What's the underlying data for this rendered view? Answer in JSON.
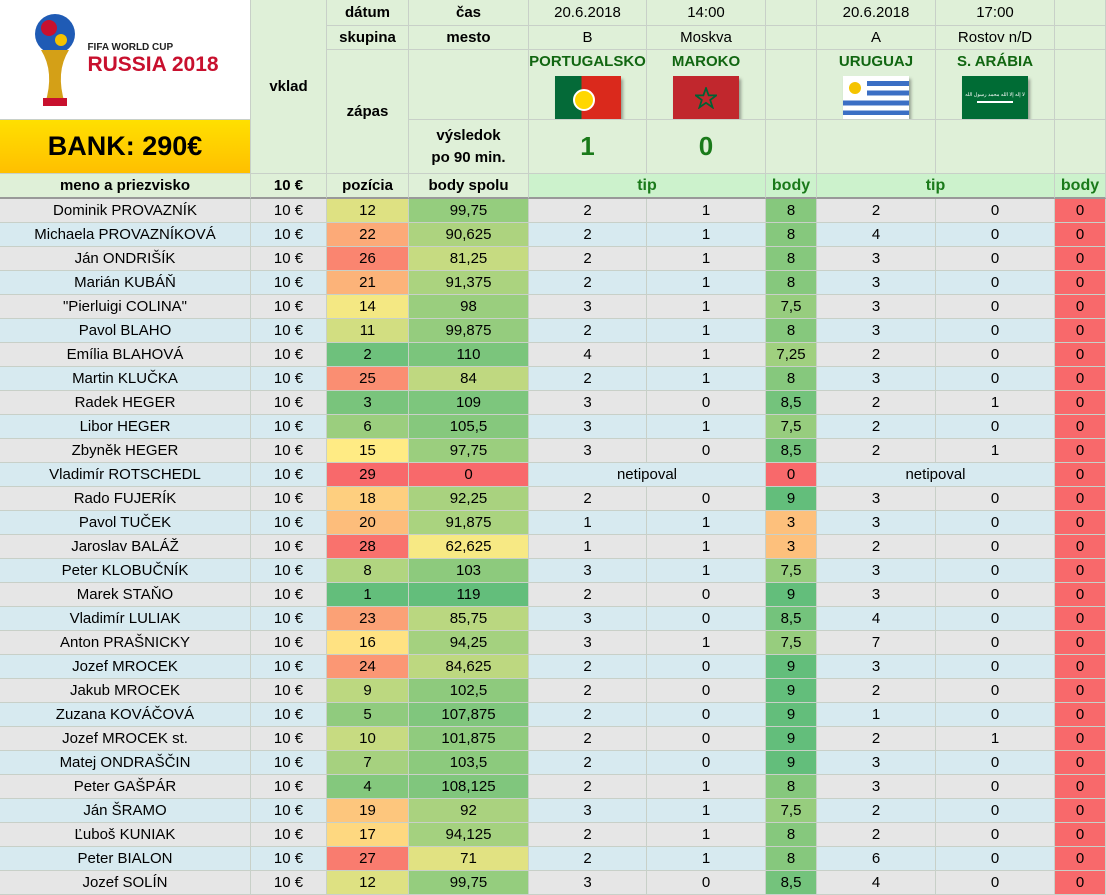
{
  "logo": {
    "line1": "FIFA WORLD CUP",
    "line2": "RUSSIA 2018"
  },
  "bank": "BANK: 290€",
  "headers": {
    "datum": "dátum",
    "cas": "čas",
    "skupina": "skupina",
    "mesto": "mesto",
    "vklad": "vklad",
    "zapas": "zápas",
    "vysledok1": "výsledok",
    "vysledok2": "po 90 min.",
    "meno": "meno a priezvisko",
    "vklad_total": "10 €",
    "pozicia": "pozícia",
    "body_spolu": "body spolu",
    "tip": "tip",
    "body": "body"
  },
  "match1": {
    "date": "20.6.2018",
    "time": "14:00",
    "group": "B",
    "city": "Moskva",
    "team_a": "PORTUGALSKO",
    "team_b": "MAROKO",
    "score_a": "1",
    "score_b": "0"
  },
  "match2": {
    "date": "20.6.2018",
    "time": "17:00",
    "group": "A",
    "city": "Rostov n/D",
    "team_a": "URUGUAJ",
    "team_b": "S. ARÁBIA"
  },
  "flags": {
    "portugal": "flag-portugal-icon",
    "morocco": "flag-morocco-icon",
    "uruguay": "flag-uruguay-icon",
    "saudi": "flag-saudi-arabia-icon"
  },
  "saudi_flag_text": "لا إله إلا الله محمد رسول الله",
  "colors": {
    "body_red": "#f8696b",
    "header_green": "#dff0d8"
  },
  "rows": [
    {
      "name": "Dominik PROVAZNÍK",
      "vklad": "10 €",
      "poz": "12",
      "spolu": "99,75",
      "t1a": "2",
      "t1b": "1",
      "b1": "8",
      "t2a": "2",
      "t2b": "0",
      "b2": "0"
    },
    {
      "name": "Michaela PROVAZNÍKOVÁ",
      "vklad": "10 €",
      "poz": "22",
      "spolu": "90,625",
      "t1a": "2",
      "t1b": "1",
      "b1": "8",
      "t2a": "4",
      "t2b": "0",
      "b2": "0"
    },
    {
      "name": "Ján ONDRIŠÍK",
      "vklad": "10 €",
      "poz": "26",
      "spolu": "81,25",
      "t1a": "2",
      "t1b": "1",
      "b1": "8",
      "t2a": "3",
      "t2b": "0",
      "b2": "0"
    },
    {
      "name": "Marián KUBÁŇ",
      "vklad": "10 €",
      "poz": "21",
      "spolu": "91,375",
      "t1a": "2",
      "t1b": "1",
      "b1": "8",
      "t2a": "3",
      "t2b": "0",
      "b2": "0"
    },
    {
      "name": "\"Pierluigi COLINA\"",
      "vklad": "10 €",
      "poz": "14",
      "spolu": "98",
      "t1a": "3",
      "t1b": "1",
      "b1": "7,5",
      "t2a": "3",
      "t2b": "0",
      "b2": "0"
    },
    {
      "name": "Pavol BLAHO",
      "vklad": "10 €",
      "poz": "11",
      "spolu": "99,875",
      "t1a": "2",
      "t1b": "1",
      "b1": "8",
      "t2a": "3",
      "t2b": "0",
      "b2": "0"
    },
    {
      "name": "Emília BLAHOVÁ",
      "vklad": "10 €",
      "poz": "2",
      "spolu": "110",
      "t1a": "4",
      "t1b": "1",
      "b1": "7,25",
      "t2a": "2",
      "t2b": "0",
      "b2": "0"
    },
    {
      "name": "Martin KLUČKA",
      "vklad": "10 €",
      "poz": "25",
      "spolu": "84",
      "t1a": "2",
      "t1b": "1",
      "b1": "8",
      "t2a": "3",
      "t2b": "0",
      "b2": "0"
    },
    {
      "name": "Radek HEGER",
      "vklad": "10 €",
      "poz": "3",
      "spolu": "109",
      "t1a": "3",
      "t1b": "0",
      "b1": "8,5",
      "t2a": "2",
      "t2b": "1",
      "b2": "0"
    },
    {
      "name": "Libor HEGER",
      "vklad": "10 €",
      "poz": "6",
      "spolu": "105,5",
      "t1a": "3",
      "t1b": "1",
      "b1": "7,5",
      "t2a": "2",
      "t2b": "0",
      "b2": "0"
    },
    {
      "name": "Zbyněk HEGER",
      "vklad": "10 €",
      "poz": "15",
      "spolu": "97,75",
      "t1a": "3",
      "t1b": "0",
      "b1": "8,5",
      "t2a": "2",
      "t2b": "1",
      "b2": "0"
    },
    {
      "name": "Vladimír ROTSCHEDL",
      "vklad": "10 €",
      "poz": "29",
      "spolu": "0",
      "t1": "netipoval",
      "b1": "0",
      "t2": "netipoval",
      "b2": "0"
    },
    {
      "name": "Rado FUJERÍK",
      "vklad": "10 €",
      "poz": "18",
      "spolu": "92,25",
      "t1a": "2",
      "t1b": "0",
      "b1": "9",
      "t2a": "3",
      "t2b": "0",
      "b2": "0"
    },
    {
      "name": "Pavol TUČEK",
      "vklad": "10 €",
      "poz": "20",
      "spolu": "91,875",
      "t1a": "1",
      "t1b": "1",
      "b1": "3",
      "t2a": "3",
      "t2b": "0",
      "b2": "0"
    },
    {
      "name": "Jaroslav BALÁŽ",
      "vklad": "10 €",
      "poz": "28",
      "spolu": "62,625",
      "t1a": "1",
      "t1b": "1",
      "b1": "3",
      "t2a": "2",
      "t2b": "0",
      "b2": "0"
    },
    {
      "name": "Peter KLOBUČNÍK",
      "vklad": "10 €",
      "poz": "8",
      "spolu": "103",
      "t1a": "3",
      "t1b": "1",
      "b1": "7,5",
      "t2a": "3",
      "t2b": "0",
      "b2": "0"
    },
    {
      "name": "Marek STAŇO",
      "vklad": "10 €",
      "poz": "1",
      "spolu": "119",
      "t1a": "2",
      "t1b": "0",
      "b1": "9",
      "t2a": "3",
      "t2b": "0",
      "b2": "0"
    },
    {
      "name": "Vladimír LULIAK",
      "vklad": "10 €",
      "poz": "23",
      "spolu": "85,75",
      "t1a": "3",
      "t1b": "0",
      "b1": "8,5",
      "t2a": "4",
      "t2b": "0",
      "b2": "0"
    },
    {
      "name": "Anton PRAŠNICKY",
      "vklad": "10 €",
      "poz": "16",
      "spolu": "94,25",
      "t1a": "3",
      "t1b": "1",
      "b1": "7,5",
      "t2a": "7",
      "t2b": "0",
      "b2": "0"
    },
    {
      "name": "Jozef MROCEK",
      "vklad": "10 €",
      "poz": "24",
      "spolu": "84,625",
      "t1a": "2",
      "t1b": "0",
      "b1": "9",
      "t2a": "3",
      "t2b": "0",
      "b2": "0"
    },
    {
      "name": "Jakub MROCEK",
      "vklad": "10 €",
      "poz": "9",
      "spolu": "102,5",
      "t1a": "2",
      "t1b": "0",
      "b1": "9",
      "t2a": "2",
      "t2b": "0",
      "b2": "0"
    },
    {
      "name": "Zuzana KOVÁČOVÁ",
      "vklad": "10 €",
      "poz": "5",
      "spolu": "107,875",
      "t1a": "2",
      "t1b": "0",
      "b1": "9",
      "t2a": "1",
      "t2b": "0",
      "b2": "0"
    },
    {
      "name": "Jozef MROCEK st.",
      "vklad": "10 €",
      "poz": "10",
      "spolu": "101,875",
      "t1a": "2",
      "t1b": "0",
      "b1": "9",
      "t2a": "2",
      "t2b": "1",
      "b2": "0"
    },
    {
      "name": "Matej ONDRAŠČIN",
      "vklad": "10 €",
      "poz": "7",
      "spolu": "103,5",
      "t1a": "2",
      "t1b": "0",
      "b1": "9",
      "t2a": "3",
      "t2b": "0",
      "b2": "0"
    },
    {
      "name": "Peter GAŠPÁR",
      "vklad": "10 €",
      "poz": "4",
      "spolu": "108,125",
      "t1a": "2",
      "t1b": "1",
      "b1": "8",
      "t2a": "3",
      "t2b": "0",
      "b2": "0"
    },
    {
      "name": "Ján ŠRAMO",
      "vklad": "10 €",
      "poz": "19",
      "spolu": "92",
      "t1a": "3",
      "t1b": "1",
      "b1": "7,5",
      "t2a": "2",
      "t2b": "0",
      "b2": "0"
    },
    {
      "name": "Ľuboš KUNIAK",
      "vklad": "10 €",
      "poz": "17",
      "spolu": "94,125",
      "t1a": "2",
      "t1b": "1",
      "b1": "8",
      "t2a": "2",
      "t2b": "0",
      "b2": "0"
    },
    {
      "name": "Peter BIALON",
      "vklad": "10 €",
      "poz": "27",
      "spolu": "71",
      "t1a": "2",
      "t1b": "1",
      "b1": "8",
      "t2a": "6",
      "t2b": "0",
      "b2": "0"
    },
    {
      "name": "Jozef SOLÍN",
      "vklad": "10 €",
      "poz": "12",
      "spolu": "99,75",
      "t1a": "3",
      "t1b": "0",
      "b1": "8,5",
      "t2a": "4",
      "t2b": "0",
      "b2": "0"
    }
  ]
}
